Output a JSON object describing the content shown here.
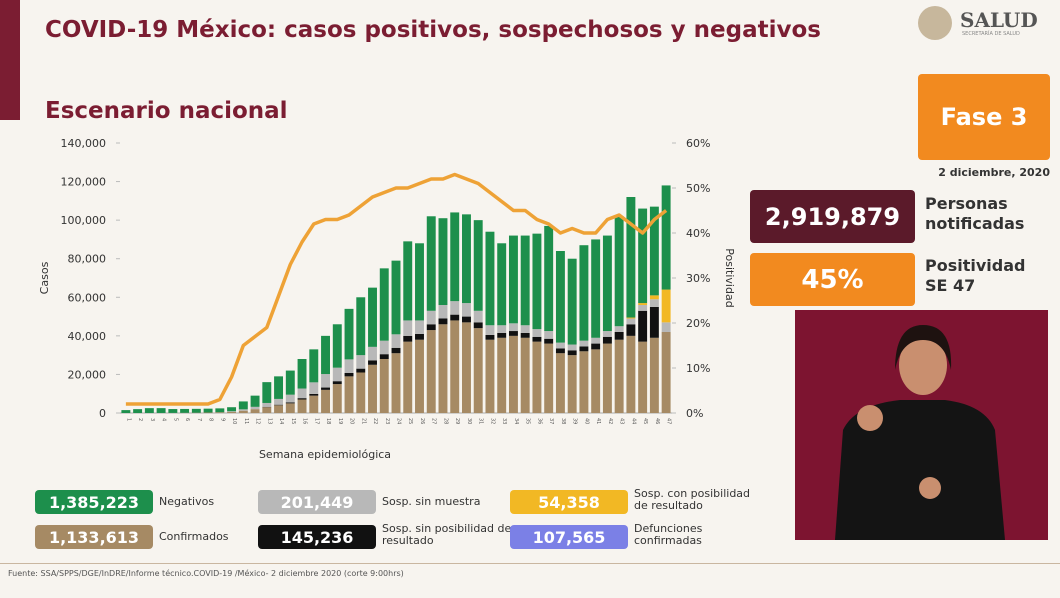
{
  "header": {
    "title": "COVID-19 México: casos positivos, sospechosos y negativos",
    "logo": "SALUD",
    "logo_subtitle": "SECRETARÍA DE SALUD",
    "subtitle": "Escenario nacional"
  },
  "side": {
    "phase": "Fase 3",
    "date": "2 diciembre, 2020",
    "notified_value": "2,919,879",
    "notified_label": "Personas notificadas",
    "positivity_value": "45%",
    "positivity_label": "Positividad SE 47"
  },
  "deaths": {
    "total": "107,565",
    "label": "Defunciones confirmadas",
    "color": "#7b80e6"
  },
  "footer": "Fuente: SSA/SPPS/DGE/InDRE/Informe técnico.COVID-19 /México- 2 diciembre 2020 (corte 9:00hrs)",
  "chart_data": {
    "type": "bar",
    "x_label": "Semana epidemiológica",
    "y_label": "Casos",
    "categories": [
      "1",
      "2",
      "3",
      "4",
      "5",
      "6",
      "7",
      "8",
      "9",
      "10",
      "11",
      "12",
      "13",
      "14",
      "15",
      "16",
      "17",
      "18",
      "19",
      "20",
      "21",
      "22",
      "23",
      "24",
      "25",
      "26",
      "27",
      "28",
      "29",
      "30",
      "31",
      "32",
      "33",
      "34",
      "35",
      "36",
      "37",
      "38",
      "39",
      "40",
      "41",
      "42",
      "43",
      "44",
      "45",
      "46",
      "47"
    ],
    "ylim": [
      0,
      140000
    ],
    "yticks": [
      0,
      {
        "value": 20000,
        "label": "20,000"
      },
      {
        "value": 40000,
        "label": "40,000"
      },
      {
        "value": 60000,
        "label": "60,000"
      },
      {
        "value": 80000,
        "label": "80,000"
      },
      {
        "value": 100000,
        "label": "100,000"
      },
      {
        "value": 120000,
        "label": "120,000"
      },
      {
        "value": 140000,
        "label": "140,000"
      }
    ],
    "y2lim": [
      0,
      60
    ],
    "y2ticks": [
      {
        "value": 0,
        "label": "0%"
      },
      {
        "value": 10,
        "label": "10%"
      },
      {
        "value": 20,
        "label": "20%"
      },
      {
        "value": 30,
        "label": "30%"
      },
      {
        "value": 40,
        "label": "40%"
      },
      {
        "value": 50,
        "label": "50%"
      },
      {
        "value": 60,
        "label": "60%"
      }
    ],
    "series": [
      {
        "name": "Confirmados",
        "total": "1,133,613",
        "color": "#a68a64",
        "values": [
          0,
          0,
          10,
          20,
          50,
          100,
          150,
          250,
          400,
          600,
          1200,
          2000,
          3000,
          4000,
          5000,
          7000,
          9000,
          12000,
          15000,
          19000,
          21000,
          25000,
          28000,
          31000,
          37000,
          38000,
          43000,
          46000,
          48000,
          47000,
          44000,
          38000,
          39000,
          40000,
          39000,
          37000,
          36000,
          31000,
          30000,
          32000,
          33000,
          36000,
          38000,
          40000,
          37000,
          39000,
          42000
        ]
      },
      {
        "name": "Sosp. sin posibilidad de resultado",
        "total": "145,236",
        "color": "#111111",
        "values": [
          0,
          0,
          0,
          0,
          0,
          0,
          0,
          0,
          0,
          0,
          0,
          0,
          200,
          300,
          500,
          700,
          900,
          1200,
          1500,
          1800,
          2000,
          2300,
          2500,
          2800,
          3000,
          3000,
          3000,
          3000,
          3000,
          3000,
          3000,
          2500,
          2500,
          2500,
          2500,
          2500,
          2500,
          2500,
          2500,
          2500,
          3000,
          3500,
          4000,
          6000,
          16000,
          16000,
          0
        ]
      },
      {
        "name": "Sosp. sin muestra",
        "total": "201,449",
        "color": "#b8b8b8",
        "values": [
          0,
          0,
          0,
          0,
          0,
          0,
          0,
          0,
          0,
          300,
          700,
          1200,
          2000,
          3000,
          4000,
          5000,
          6000,
          7000,
          7000,
          7000,
          7000,
          7000,
          7000,
          7000,
          8000,
          7000,
          7000,
          7000,
          7000,
          7000,
          6000,
          5000,
          4000,
          4000,
          4000,
          4000,
          4000,
          3000,
          3000,
          3000,
          3000,
          3000,
          3000,
          3000,
          3000,
          4000,
          5000
        ]
      },
      {
        "name": "Sosp. con posibilidad de resultado",
        "total": "54,358",
        "color": "#f2b824",
        "values": [
          0,
          0,
          0,
          0,
          0,
          0,
          0,
          0,
          0,
          0,
          0,
          0,
          0,
          0,
          0,
          0,
          0,
          0,
          0,
          0,
          0,
          0,
          0,
          0,
          0,
          0,
          0,
          0,
          0,
          0,
          0,
          0,
          0,
          0,
          0,
          0,
          0,
          0,
          0,
          0,
          0,
          0,
          0,
          500,
          1000,
          2000,
          17000
        ]
      },
      {
        "name": "Negativos",
        "total": "1,385,223",
        "color": "#1d8f4c",
        "values": [
          1500,
          2000,
          2500,
          2500,
          2000,
          2000,
          2000,
          2000,
          2000,
          2100,
          4100,
          5800,
          10800,
          11700,
          12500,
          15300,
          17100,
          19800,
          22500,
          26200,
          30000,
          30700,
          37500,
          38200,
          41000,
          40000,
          49000,
          45000,
          46000,
          46000,
          47000,
          48500,
          42500,
          45500,
          46500,
          49500,
          54500,
          47500,
          44500,
          49500,
          51000,
          49500,
          57000,
          62500,
          49000,
          46000,
          54000
        ]
      },
      {
        "name": "Positividad",
        "type": "line",
        "axis": "y2",
        "color": "#eea236",
        "values": [
          2,
          2,
          2,
          2,
          2,
          2,
          2,
          2,
          3,
          8,
          15,
          17,
          19,
          26,
          33,
          38,
          42,
          43,
          43,
          44,
          46,
          48,
          49,
          50,
          50,
          51,
          52,
          52,
          53,
          52,
          51,
          49,
          47,
          45,
          45,
          43,
          42,
          40,
          41,
          40,
          40,
          43,
          44,
          42,
          40,
          43,
          45
        ]
      }
    ]
  }
}
